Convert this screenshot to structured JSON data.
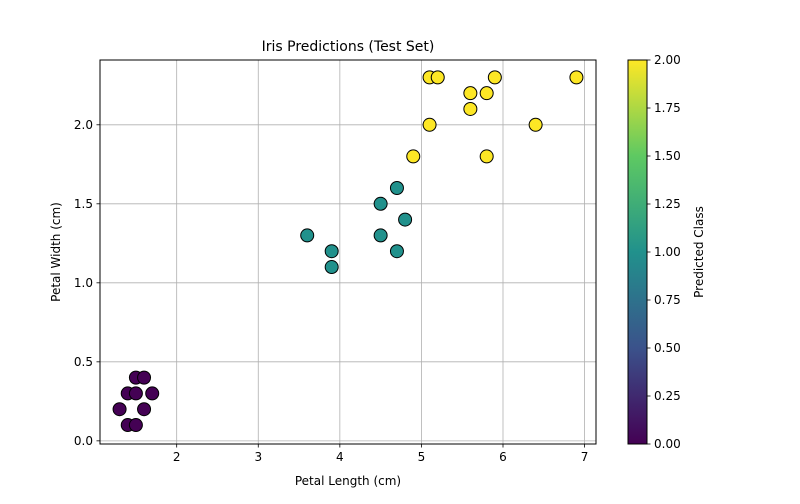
{
  "chart_data": {
    "type": "scatter",
    "title": "Iris Predictions (Test Set)",
    "xlabel": "Petal Length (cm)",
    "ylabel": "Petal Width (cm)",
    "xlim": [
      1.06,
      7.14
    ],
    "ylim": [
      -0.02,
      2.41
    ],
    "xticks": [
      2,
      3,
      4,
      5,
      6,
      7
    ],
    "yticks": [
      0.0,
      0.5,
      1.0,
      1.5,
      2.0
    ],
    "ytick_labels": [
      "0.0",
      "0.5",
      "1.0",
      "1.5",
      "2.0"
    ],
    "grid": true,
    "colormap": "viridis",
    "marker_edge_color": "#000000",
    "points": [
      {
        "x": 1.3,
        "y": 0.2,
        "class": 0
      },
      {
        "x": 1.4,
        "y": 0.1,
        "class": 0
      },
      {
        "x": 1.4,
        "y": 0.3,
        "class": 0
      },
      {
        "x": 1.5,
        "y": 0.1,
        "class": 0
      },
      {
        "x": 1.5,
        "y": 0.3,
        "class": 0
      },
      {
        "x": 1.5,
        "y": 0.4,
        "class": 0
      },
      {
        "x": 1.6,
        "y": 0.2,
        "class": 0
      },
      {
        "x": 1.6,
        "y": 0.4,
        "class": 0
      },
      {
        "x": 1.7,
        "y": 0.3,
        "class": 0
      },
      {
        "x": 3.6,
        "y": 1.3,
        "class": 1
      },
      {
        "x": 3.9,
        "y": 1.1,
        "class": 1
      },
      {
        "x": 3.9,
        "y": 1.2,
        "class": 1
      },
      {
        "x": 4.5,
        "y": 1.3,
        "class": 1
      },
      {
        "x": 4.5,
        "y": 1.5,
        "class": 1
      },
      {
        "x": 4.7,
        "y": 1.2,
        "class": 1
      },
      {
        "x": 4.7,
        "y": 1.6,
        "class": 1
      },
      {
        "x": 4.8,
        "y": 1.4,
        "class": 1
      },
      {
        "x": 4.9,
        "y": 1.8,
        "class": 2
      },
      {
        "x": 5.1,
        "y": 2.0,
        "class": 2
      },
      {
        "x": 5.1,
        "y": 2.3,
        "class": 2
      },
      {
        "x": 5.2,
        "y": 2.3,
        "class": 2
      },
      {
        "x": 5.6,
        "y": 2.1,
        "class": 2
      },
      {
        "x": 5.6,
        "y": 2.2,
        "class": 2
      },
      {
        "x": 5.8,
        "y": 1.8,
        "class": 2
      },
      {
        "x": 5.8,
        "y": 2.2,
        "class": 2
      },
      {
        "x": 5.9,
        "y": 2.3,
        "class": 2
      },
      {
        "x": 6.4,
        "y": 2.0,
        "class": 2
      },
      {
        "x": 6.9,
        "y": 2.3,
        "class": 2
      }
    ],
    "colorbar": {
      "label": "Predicted Class",
      "range": [
        0.0,
        2.0
      ],
      "ticks": [
        0.0,
        0.25,
        0.5,
        0.75,
        1.0,
        1.25,
        1.5,
        1.75,
        2.0
      ],
      "tick_labels": [
        "0.00",
        "0.25",
        "0.50",
        "0.75",
        "1.00",
        "1.25",
        "1.50",
        "1.75",
        "2.00"
      ],
      "colors": [
        "#440154",
        "#3b528b",
        "#21918c",
        "#5ec962",
        "#fde725"
      ]
    }
  }
}
